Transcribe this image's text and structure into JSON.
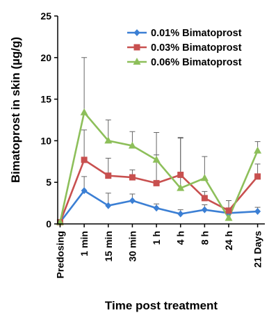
{
  "chart_data": {
    "type": "line",
    "title": "",
    "xlabel": "Time post treatment",
    "ylabel": "Bimatoprost in skin (µg/g)",
    "ylim": [
      0,
      25
    ],
    "yticks": [
      "0",
      "5",
      "10",
      "15",
      "20",
      "25"
    ],
    "categories": [
      "Predosing",
      "1 min",
      "15 min",
      "30 min",
      "1 h",
      "4 h",
      "8 h",
      "24 h",
      "21 Days"
    ],
    "x_positions": [
      0,
      1,
      2,
      3,
      4,
      5,
      6,
      7,
      8.2
    ],
    "legend_position": "top-right",
    "grid": false,
    "series": [
      {
        "name": "0.01% Bimatoprost",
        "color": "#3b7fd4",
        "marker": "diamond",
        "values": [
          0.2,
          4.0,
          2.2,
          2.8,
          1.9,
          1.2,
          1.7,
          1.3,
          1.5
        ],
        "errors": [
          0,
          1.7,
          1.5,
          0.8,
          0.5,
          0.5,
          0.6,
          0.6,
          0.5
        ]
      },
      {
        "name": "0.03% Bimatoprost",
        "color": "#c8504f",
        "marker": "square",
        "values": [
          0.2,
          7.7,
          5.8,
          5.6,
          4.9,
          5.9,
          3.1,
          1.6,
          5.7
        ],
        "errors": [
          0,
          3.6,
          2.1,
          0.9,
          3.4,
          4.5,
          0.8,
          1.2,
          1.5
        ]
      },
      {
        "name": "0.06% Bimatoprost",
        "color": "#8dbf5a",
        "marker": "triangle",
        "values": [
          0.2,
          13.4,
          10.0,
          9.4,
          7.7,
          4.3,
          5.5,
          0.7,
          8.8
        ],
        "errors": [
          0,
          6.6,
          2.5,
          1.7,
          3.3,
          6.0,
          2.6,
          2.1,
          1.1
        ]
      }
    ]
  }
}
